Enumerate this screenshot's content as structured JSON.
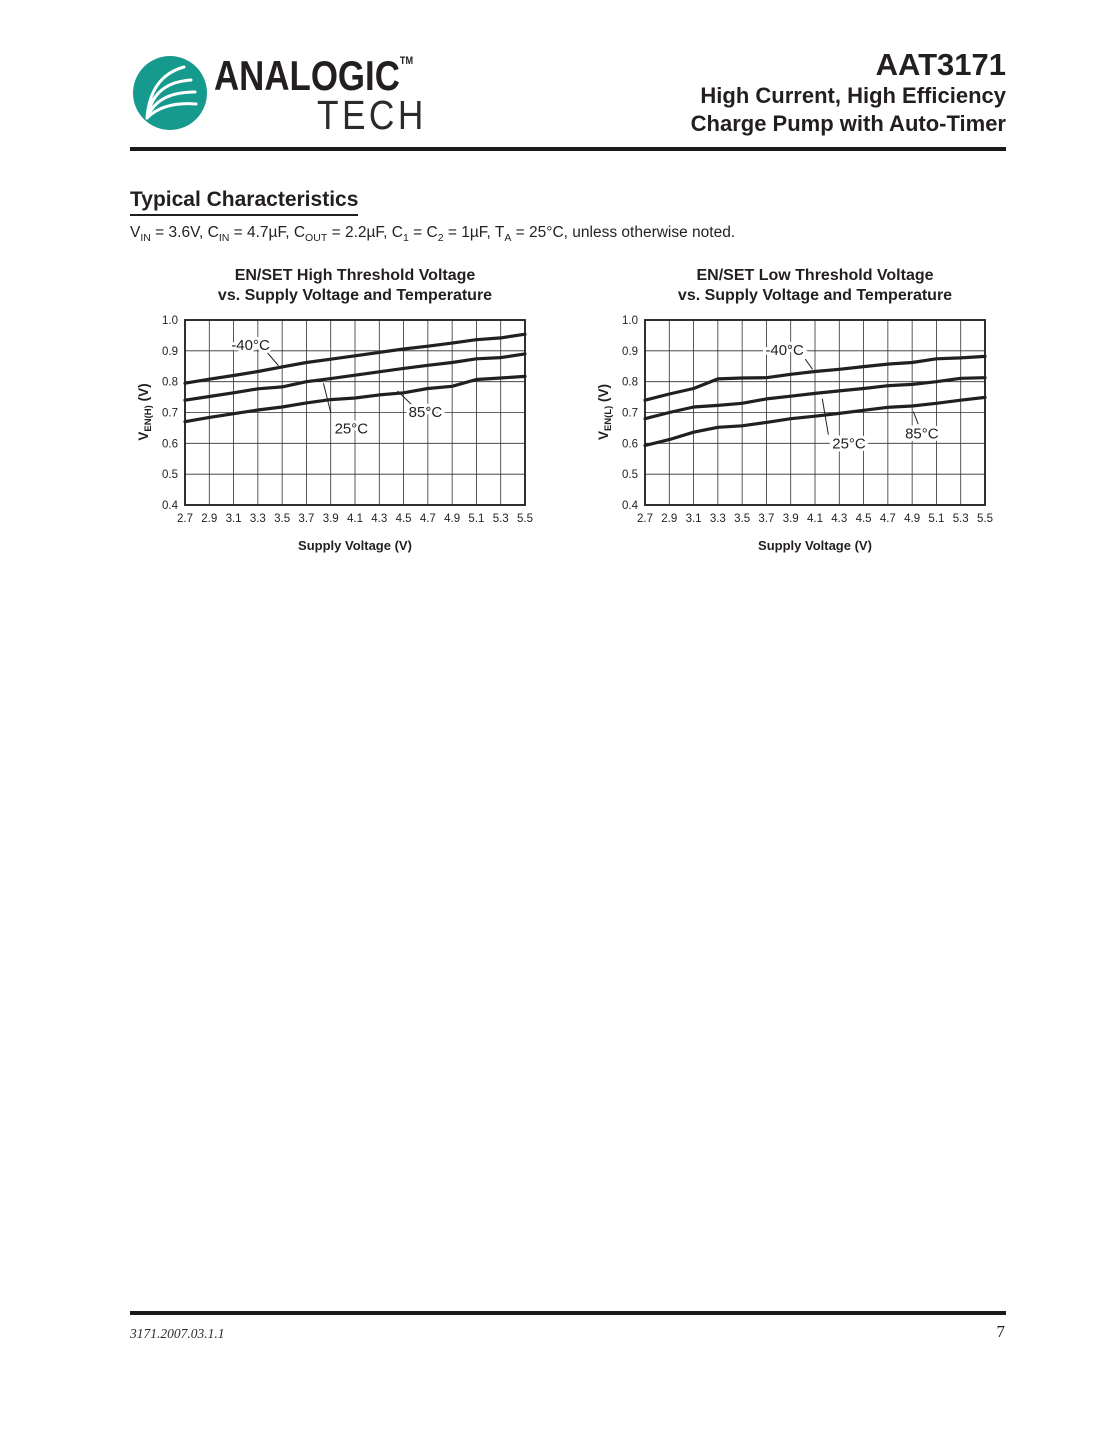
{
  "header": {
    "logo": {
      "line1": "ANALOGIC",
      "tm": "TM",
      "line2": "TECH",
      "brand_color": "#179a8e"
    },
    "part_number": "AAT3171",
    "subtitle_line1": "High Current, High Efficiency",
    "subtitle_line2": "Charge Pump with Auto-Timer"
  },
  "section": {
    "title": "Typical Characteristics",
    "conditions": [
      [
        "t",
        "V"
      ],
      [
        "s",
        "IN"
      ],
      [
        "t",
        " = 3.6V, C"
      ],
      [
        "s",
        "IN"
      ],
      [
        "t",
        " = 4.7µF, C"
      ],
      [
        "s",
        "OUT"
      ],
      [
        "t",
        " = 2.2µF, C"
      ],
      [
        "s",
        "1"
      ],
      [
        "t",
        " = C"
      ],
      [
        "s",
        "2"
      ],
      [
        "t",
        " = 1µF, T"
      ],
      [
        "s",
        "A"
      ],
      [
        "t",
        " = 25°C, unless otherwise noted."
      ]
    ]
  },
  "chart_data": [
    {
      "type": "line",
      "title_line1": "EN/SET High Threshold Voltage",
      "title_line2": "vs. Supply Voltage and Temperature",
      "xlabel": "Supply Voltage (V)",
      "ylabel": "VEN(H) (V)",
      "ylabel_parts": [
        [
          "t",
          "V"
        ],
        [
          "s",
          "EN(H)"
        ],
        [
          "t",
          " (V)"
        ]
      ],
      "x": [
        2.7,
        2.9,
        3.1,
        3.3,
        3.5,
        3.7,
        3.9,
        4.1,
        4.3,
        4.5,
        4.7,
        4.9,
        5.1,
        5.3,
        5.5
      ],
      "xlim": [
        2.7,
        5.5
      ],
      "ylim": [
        0.4,
        1.0
      ],
      "yticks": [
        0.4,
        0.5,
        0.6,
        0.7,
        0.8,
        0.9,
        1.0
      ],
      "grid": true,
      "legend_position": "inline-annotations",
      "line_color": "#231f20",
      "series": [
        {
          "name": "-40°C",
          "values": [
            0.795,
            0.808,
            0.82,
            0.833,
            0.848,
            0.862,
            0.873,
            0.884,
            0.895,
            0.906,
            0.915,
            0.925,
            0.936,
            0.942,
            0.954
          ]
        },
        {
          "name": "25°C",
          "values": [
            0.74,
            0.752,
            0.764,
            0.777,
            0.783,
            0.8,
            0.81,
            0.821,
            0.832,
            0.843,
            0.853,
            0.862,
            0.874,
            0.878,
            0.89
          ]
        },
        {
          "name": "85°C",
          "values": [
            0.67,
            0.684,
            0.696,
            0.708,
            0.718,
            0.731,
            0.742,
            0.747,
            0.757,
            0.764,
            0.778,
            0.785,
            0.807,
            0.812,
            0.817
          ]
        }
      ],
      "annotations": [
        {
          "text": "-40°C",
          "x": 3.24,
          "y": 0.919,
          "leader": [
            3.38,
            0.893,
            3.47,
            0.852
          ]
        },
        {
          "text": "25°C",
          "x": 4.07,
          "y": 0.648,
          "leader": [
            3.9,
            0.7,
            3.84,
            0.795
          ]
        },
        {
          "text": "85°C",
          "x": 4.68,
          "y": 0.702,
          "leader": [
            4.57,
            0.724,
            4.45,
            0.77
          ]
        }
      ]
    },
    {
      "type": "line",
      "title_line1": "EN/SET Low Threshold Voltage",
      "title_line2": "vs. Supply Voltage and Temperature",
      "xlabel": "Supply Voltage (V)",
      "ylabel": "VEN(L) (V)",
      "ylabel_parts": [
        [
          "t",
          "V"
        ],
        [
          "s",
          "EN(L)"
        ],
        [
          "t",
          " (V)"
        ]
      ],
      "x": [
        2.7,
        2.9,
        3.1,
        3.3,
        3.5,
        3.7,
        3.9,
        4.1,
        4.3,
        4.5,
        4.7,
        4.9,
        5.1,
        5.3,
        5.5
      ],
      "xlim": [
        2.7,
        5.5
      ],
      "ylim": [
        0.4,
        1.0
      ],
      "yticks": [
        0.4,
        0.5,
        0.6,
        0.7,
        0.8,
        0.9,
        1.0
      ],
      "grid": true,
      "legend_position": "inline-annotations",
      "line_color": "#231f20",
      "series": [
        {
          "name": "-40°C",
          "values": [
            0.74,
            0.76,
            0.778,
            0.809,
            0.812,
            0.813,
            0.824,
            0.833,
            0.84,
            0.849,
            0.857,
            0.862,
            0.874,
            0.877,
            0.882
          ]
        },
        {
          "name": "25°C",
          "values": [
            0.68,
            0.7,
            0.718,
            0.723,
            0.73,
            0.744,
            0.753,
            0.762,
            0.77,
            0.778,
            0.787,
            0.791,
            0.8,
            0.811,
            0.813
          ]
        },
        {
          "name": "85°C",
          "values": [
            0.593,
            0.612,
            0.636,
            0.652,
            0.657,
            0.668,
            0.68,
            0.688,
            0.697,
            0.707,
            0.717,
            0.721,
            0.73,
            0.74,
            0.749
          ]
        }
      ],
      "annotations": [
        {
          "text": "-40°C",
          "x": 3.85,
          "y": 0.903,
          "leader": [
            4.02,
            0.873,
            4.08,
            0.84
          ]
        },
        {
          "text": "25°C",
          "x": 4.38,
          "y": 0.6,
          "leader": [
            4.16,
            0.745,
            4.21,
            0.628
          ]
        },
        {
          "text": "85°C",
          "x": 4.98,
          "y": 0.632,
          "leader": [
            4.91,
            0.703,
            4.95,
            0.662
          ]
        }
      ]
    }
  ],
  "footer": {
    "doc_code": "3171.2007.03.1.1",
    "page_number": "7"
  }
}
